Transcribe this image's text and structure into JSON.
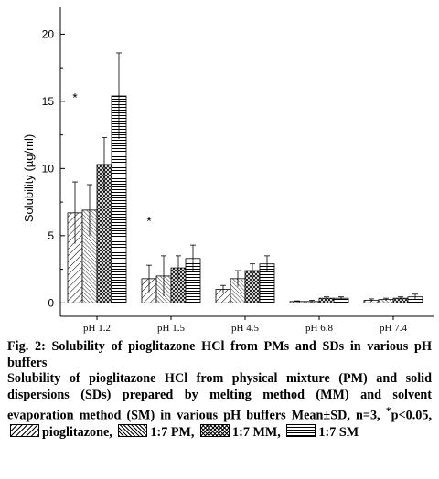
{
  "chart_data": {
    "type": "bar",
    "categories": [
      "pH 1.2",
      "pH 1.5",
      "pH 4.5",
      "pH 6.8",
      "pH 7.4"
    ],
    "series": [
      {
        "values": [
          6.7,
          1.8,
          1.0,
          0.1,
          0.2
        ],
        "errors": [
          2.3,
          1.0,
          0.3,
          0.05,
          0.1
        ],
        "pattern": "diagonal"
      },
      {
        "values": [
          6.9,
          2.0,
          1.8,
          0.1,
          0.25
        ],
        "errors": [
          1.9,
          1.5,
          0.6,
          0.1,
          0.1
        ],
        "pattern": "fine-diagonal"
      },
      {
        "values": [
          10.3,
          2.6,
          2.4,
          0.35,
          0.35
        ],
        "errors": [
          2.0,
          0.9,
          0.5,
          0.1,
          0.1
        ],
        "pattern": "crosshatch"
      },
      {
        "values": [
          15.4,
          3.3,
          2.9,
          0.35,
          0.45
        ],
        "errors": [
          3.2,
          1.0,
          0.6,
          0.1,
          0.2
        ],
        "pattern": "horizontal"
      }
    ],
    "significance": [
      {
        "category": "pH 1.2",
        "label": "*",
        "y": 15.5
      },
      {
        "category": "pH 1.5",
        "label": "*",
        "y": 6.3
      }
    ],
    "ylabel": "Solubility (µg/ml)",
    "xlabel": "",
    "ylim": [
      -1,
      22
    ],
    "yticks": [
      0,
      5,
      10,
      15,
      20
    ],
    "grid": false
  },
  "caption": {
    "title": "Fig. 2: Solubility of pioglitazone HCl from PMs and SDs in various pH buffers",
    "description": "Solubility of pioglitazone HCl from physical mixture (PM) and solid dispersions (SDs) prepared by melting method (MM) and solvent evaporation method (SM) in various pH buffers Mean±SD, n=3, ",
    "sig_star": "*",
    "sig_text": "p<0.05,",
    "legend": [
      "pioglitazone,",
      "1:7 PM,",
      "1:7 MM,",
      "1:7 SM"
    ]
  }
}
